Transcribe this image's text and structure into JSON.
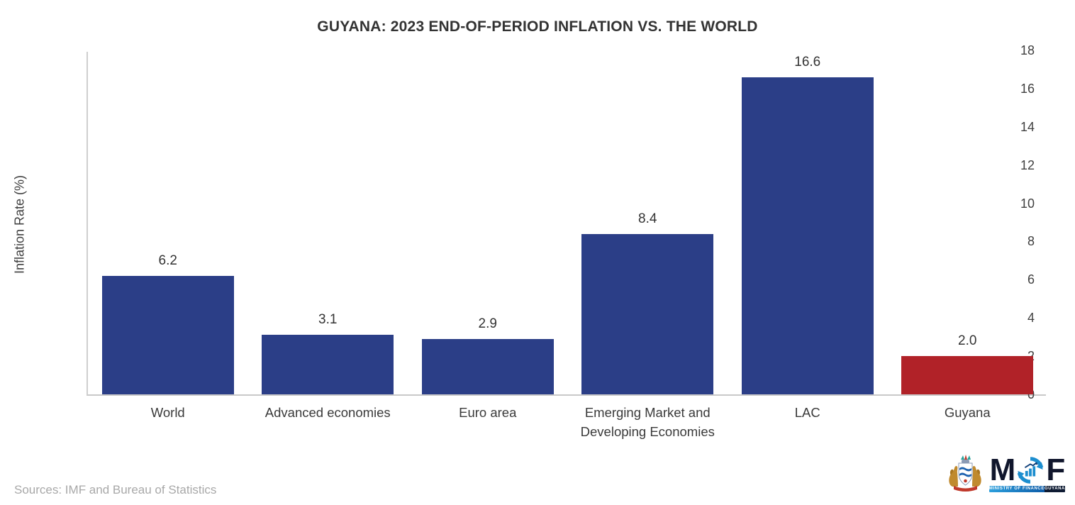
{
  "chart_data": {
    "type": "bar",
    "title": "GUYANA: 2023 END-OF-PERIOD INFLATION VS. THE WORLD",
    "xlabel": "",
    "ylabel": "Inflation Rate (%)",
    "categories": [
      "World",
      "Advanced economies",
      "Euro area",
      "Emerging Market and Developing Economies",
      "LAC",
      "Guyana"
    ],
    "values": [
      6.2,
      3.1,
      2.9,
      8.4,
      16.6,
      2.0
    ],
    "value_labels": [
      "6.2",
      "3.1",
      "2.9",
      "8.4",
      "16.6",
      "2.0"
    ],
    "bar_colors": [
      "#2B3E87",
      "#2B3E87",
      "#2B3E87",
      "#2B3E87",
      "#2B3E87",
      "#B12228"
    ],
    "ylim": [
      0,
      18
    ],
    "yticks": [
      0,
      2,
      4,
      6,
      8,
      10,
      12,
      14,
      16,
      18
    ],
    "grid": false,
    "legend_position": "none"
  },
  "footer": {
    "sources": "Sources: IMF and Bureau of Statistics"
  },
  "logo": {
    "letter_m": "M",
    "letter_f": "F",
    "banner_left": "MINISTRY OF FINANCE",
    "banner_right": "GUYANA",
    "o_icon_name": "circular-arrows-bar-chart-icon",
    "coat_of_arms_name": "guyana-coat-of-arms-icon"
  },
  "colors": {
    "bar_blue": "#2B3E87",
    "bar_red": "#B12228",
    "axis_line": "#cfcfcf",
    "title_text": "#333333",
    "tick_text": "#404040",
    "sources_text": "#a8a8a8",
    "logo_letter": "#10162c",
    "logo_icon_blue": "#1d8ecf"
  }
}
